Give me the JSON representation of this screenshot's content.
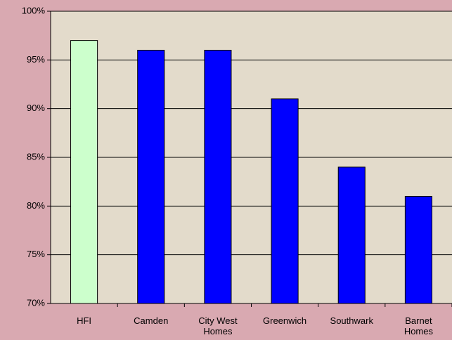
{
  "chart_data": {
    "type": "bar",
    "categories": [
      "HFI",
      "Camden",
      "City West Homes",
      "Greenwich",
      "Southwark",
      "Barnet Homes"
    ],
    "values": [
      97,
      96,
      96,
      91,
      84,
      81
    ],
    "colors": [
      "#ccffcc",
      "#0000ff",
      "#0000ff",
      "#0000ff",
      "#0000ff",
      "#0000ff"
    ],
    "ylim": [
      70,
      100
    ],
    "yticks": [
      {
        "value": 70,
        "label": "70%"
      },
      {
        "value": 75,
        "label": "75%"
      },
      {
        "value": 80,
        "label": "80%"
      },
      {
        "value": 85,
        "label": "85%"
      },
      {
        "value": 90,
        "label": "90%"
      },
      {
        "value": 95,
        "label": "95%"
      },
      {
        "value": 100,
        "label": "100%"
      }
    ],
    "grid": true
  }
}
